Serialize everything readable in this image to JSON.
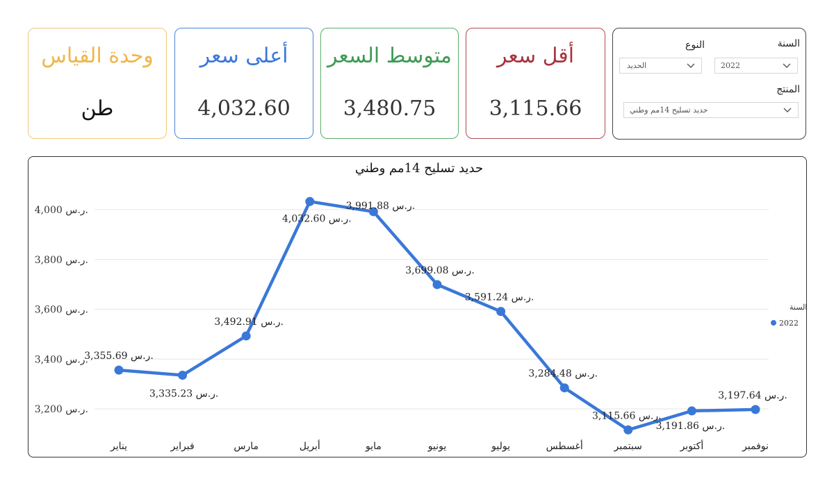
{
  "cards": {
    "unit": {
      "title": "وحدة القياس",
      "value": "طن"
    },
    "max": {
      "title": "أعلى سعر",
      "value": "4,032.60"
    },
    "avg": {
      "title": "متوسط السعر",
      "value": "3,480.75"
    },
    "min": {
      "title": "أقل سعر",
      "value": "3,115.66"
    }
  },
  "filters": {
    "year_label": "السنة",
    "year_value": "2022",
    "type_label": "النوع",
    "type_value": "الحديد",
    "product_label": "المنتج",
    "product_value": "حديد تسليح 14مم وطني"
  },
  "colors": {
    "line": "#3a78d8",
    "unit": "#f0b64a",
    "max": "#3a78d8",
    "avg": "#3d9a55",
    "min": "#a8343e"
  },
  "chart_data": {
    "type": "line",
    "title": "حديد تسليح 14مم وطني",
    "categories": [
      "يناير",
      "فبراير",
      "مارس",
      "أبريل",
      "مايو",
      "يونيو",
      "يوليو",
      "أغسطس",
      "سبتمبر",
      "أكتوبر",
      "نوفمبر"
    ],
    "series": [
      {
        "name": "2022",
        "values": [
          3355.69,
          3335.23,
          3492.91,
          4032.6,
          3991.88,
          3699.08,
          3591.24,
          3284.48,
          3115.66,
          3191.86,
          3197.64
        ]
      }
    ],
    "value_labels": [
      "3,355.69 ر.س.",
      "3,335.23 ر.س.",
      "3,492.91 ر.س.",
      "4,032.60 ر.س.",
      "3,991.88 ر.س.",
      "3,699.08 ر.س.",
      "3,591.24 ر.س.",
      "3,284.48 ر.س.",
      "3,115.66 ر.س.",
      "3,191.86 ر.س.",
      "3,197.64 ر.س."
    ],
    "yticks": [
      3200,
      3400,
      3600,
      3800,
      4000
    ],
    "ytick_labels": [
      "3,200 ر.س.",
      "3,400 ر.س.",
      "3,600 ر.س.",
      "3,800 ر.س.",
      "4,000 ر.س."
    ],
    "ylim": [
      3080,
      4070
    ],
    "legend_title": "السنة",
    "legend_position": "right",
    "grid": true
  }
}
